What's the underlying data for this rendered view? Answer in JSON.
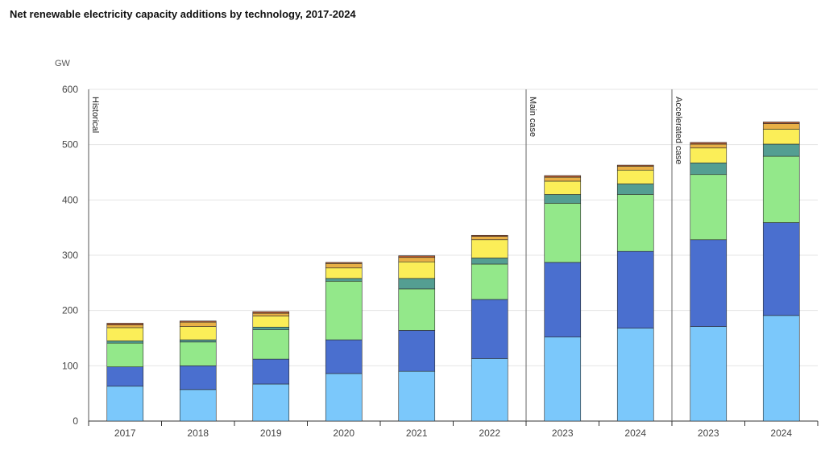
{
  "chart_data": {
    "type": "bar",
    "stacked": true,
    "title": "Net renewable electricity capacity additions by technology, 2017-2024",
    "ylabel": "GW",
    "ylim": [
      0,
      600
    ],
    "yticks": [
      0,
      100,
      200,
      300,
      400,
      500,
      600
    ],
    "grid": true,
    "categories": [
      "2017",
      "2018",
      "2019",
      "2020",
      "2021",
      "2022",
      "2023",
      "2024",
      "2023",
      "2024"
    ],
    "sections": [
      {
        "label": "Historical",
        "categories": [
          "2017",
          "2018",
          "2019",
          "2020",
          "2021",
          "2022"
        ]
      },
      {
        "label": "Main case",
        "categories": [
          "2023",
          "2024"
        ]
      },
      {
        "label": "Accelerated case",
        "categories": [
          "2023",
          "2024"
        ]
      }
    ],
    "series": [
      {
        "color": "#7bc8fb",
        "values": [
          63,
          57,
          67,
          86,
          90,
          113,
          152,
          168,
          171,
          191
        ]
      },
      {
        "color": "#4a6fcf",
        "values": [
          35,
          43,
          45,
          61,
          74,
          107,
          135,
          139,
          157,
          168
        ]
      },
      {
        "color": "#93e88a",
        "values": [
          43,
          43,
          53,
          106,
          75,
          64,
          107,
          103,
          118,
          120
        ]
      },
      {
        "color": "#549e92",
        "values": [
          4,
          4,
          5,
          5,
          19,
          11,
          16,
          19,
          21,
          22
        ]
      },
      {
        "color": "#fbee58",
        "values": [
          24,
          24,
          20,
          19,
          30,
          33,
          24,
          25,
          27,
          27
        ]
      },
      {
        "color": "#e8b046",
        "values": [
          5,
          8,
          5,
          8,
          8,
          6,
          7,
          7,
          7,
          10
        ]
      },
      {
        "color": "#b2592f",
        "values": [
          3,
          2,
          3,
          2,
          3,
          2,
          3,
          2,
          3,
          3
        ]
      }
    ]
  }
}
